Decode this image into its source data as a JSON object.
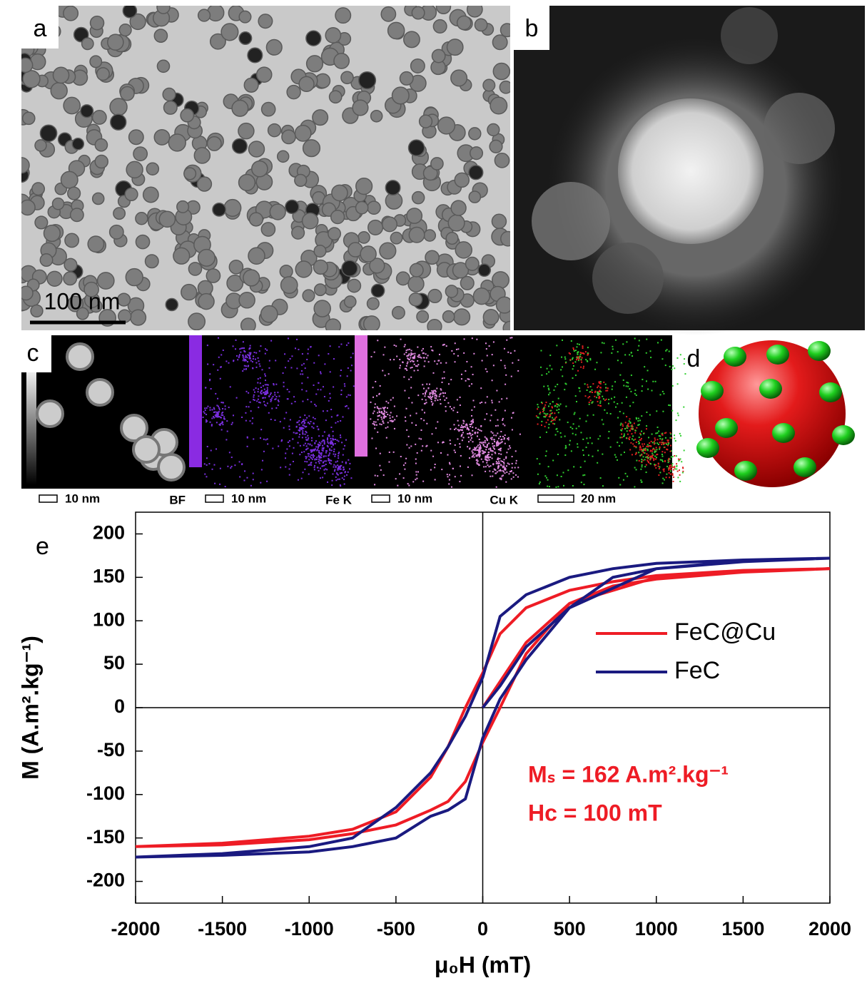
{
  "panels": [
    {
      "label": "a",
      "scale_bar": "100 nm"
    },
    {
      "label": "b"
    },
    {
      "label": "c",
      "maps": [
        {
          "scale_bar": "10 nm",
          "channel": "BF"
        },
        {
          "scale_bar": "10 nm",
          "channel": "Fe K"
        },
        {
          "scale_bar": "10 nm",
          "channel": "Cu K"
        },
        {
          "scale_bar": "20 nm"
        }
      ]
    },
    {
      "label": "d"
    }
  ],
  "chart_data": {
    "type": "line",
    "label": "e",
    "x_label": "μ₀H (mT)",
    "y_label": "M (A.m².kg⁻¹)",
    "annotations": [
      "Mₛ = 162 A.m².kg⁻¹",
      "Hc = 100 mT"
    ],
    "annotation_color": "#ee1c25",
    "x": [
      0,
      100,
      250,
      500,
      1000,
      1500,
      2000,
      1500,
      1000,
      750,
      500,
      250,
      100,
      0,
      -100,
      -200,
      -300,
      -500,
      -750,
      -1000,
      -1500,
      -2000,
      -1500,
      -1000,
      -750,
      -500,
      -300,
      -200,
      -100,
      0,
      100,
      250,
      500,
      750,
      1000,
      1500,
      2000
    ],
    "series": [
      {
        "name": "FeC@Cu",
        "color": "#ee1c25",
        "values": [
          0,
          30,
          75,
          120,
          150,
          157,
          160,
          158,
          152,
          145,
          135,
          115,
          85,
          40,
          0,
          -45,
          -80,
          -120,
          -140,
          -148,
          -156,
          -160,
          -158,
          -152,
          -145,
          -135,
          -118,
          -108,
          -85,
          -40,
          0,
          62,
          120,
          140,
          148,
          156,
          160
        ]
      },
      {
        "name": "FeC",
        "color": "#1a1a80",
        "values": [
          0,
          25,
          70,
          115,
          160,
          169,
          172,
          170,
          166,
          160,
          150,
          130,
          105,
          35,
          -10,
          -45,
          -75,
          -115,
          -150,
          -160,
          -168,
          -172,
          -170,
          -166,
          -160,
          -150,
          -125,
          -118,
          -105,
          -35,
          10,
          55,
          115,
          150,
          160,
          168,
          172
        ]
      }
    ],
    "xlim": [
      -2000,
      2000
    ],
    "ylim": [
      -225,
      225
    ],
    "xticks": [
      -2000,
      -1500,
      -1000,
      -500,
      0,
      500,
      1000,
      1500,
      2000
    ],
    "yticks": [
      -200,
      -150,
      -100,
      -50,
      0,
      50,
      100,
      150,
      200
    ]
  }
}
